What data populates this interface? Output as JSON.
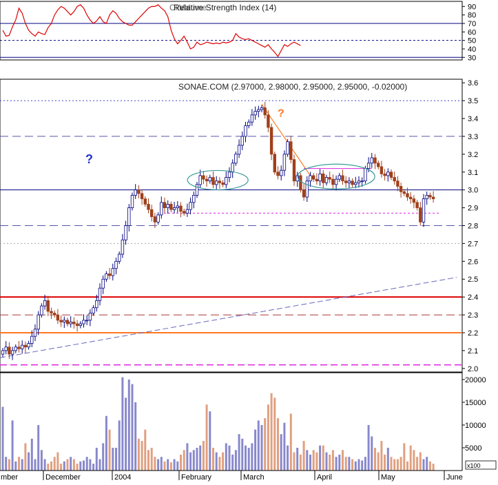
{
  "colors": {
    "background": "#ffffff",
    "frame": "#000000",
    "rsi_line": "#dd0000",
    "up_candle": "#ffffff",
    "up_candle_edge": "#000080",
    "down_candle": "#a0401a",
    "wick": "#000080",
    "volume_up": "#8888cc",
    "volume_down": "#e0a080",
    "annotation_blue": "#2233cc",
    "annotation_orange": "#ff7722",
    "ellipse": "#3a9a9a",
    "trendline_down": "#ff6600",
    "trendline_up": "#6666bb",
    "support_magenta": "#dd22dd",
    "level_red": "#dd0000",
    "level_orange": "#ff7722",
    "dash_blue": "#3333aa",
    "dash_red": "#aa3333"
  },
  "chart_data": [
    {
      "id": "rsi-panel",
      "type": "line",
      "title": "Relative Strength Index (14)",
      "overlap_text": [
        "Close",
        "Volume"
      ],
      "ylim": [
        27,
        96
      ],
      "y_ticks": [
        30,
        40,
        50,
        60,
        70,
        80,
        90
      ],
      "reference_lines": [
        {
          "value": 70,
          "style": "solid"
        },
        {
          "value": 50,
          "style": "dotted"
        },
        {
          "value": 30,
          "style": "solid"
        }
      ],
      "series": [
        {
          "values": [
            62,
            55,
            56,
            66,
            74,
            88,
            82,
            70,
            62,
            58,
            55,
            60,
            58,
            57,
            65,
            70,
            80,
            86,
            90,
            88,
            84,
            80,
            84,
            90,
            92,
            88,
            80,
            74,
            70,
            73,
            78,
            72,
            70,
            80,
            85,
            82,
            76,
            72,
            70,
            68,
            68,
            72,
            76,
            80,
            84,
            88,
            90,
            90,
            92,
            88,
            85,
            78,
            62,
            52,
            46,
            50,
            55,
            48,
            40,
            42,
            48,
            45,
            46,
            48,
            47,
            46,
            47,
            46,
            48,
            47,
            48,
            50,
            58,
            54,
            52,
            51,
            52,
            50,
            48,
            46,
            44,
            42,
            45,
            40,
            36,
            31,
            38,
            45,
            43,
            46,
            48,
            46,
            44
          ]
        }
      ]
    },
    {
      "id": "price-panel",
      "type": "candlestick",
      "title": "SONAE.COM (2.97000, 2.98000, 2.95000, 2.95000, -0.02000)",
      "ylim": [
        1.98,
        3.62
      ],
      "y_ticks": [
        2.0,
        2.1,
        2.2,
        2.3,
        2.4,
        2.5,
        2.6,
        2.7,
        2.8,
        2.9,
        3.0,
        3.1,
        3.2,
        3.3,
        3.4,
        3.5,
        3.6
      ],
      "x_labels": [
        "mber",
        "December",
        "2004",
        "February",
        "March",
        "April",
        "May",
        "June"
      ],
      "closes": [
        2.1,
        2.12,
        2.08,
        2.1,
        2.12,
        2.11,
        2.13,
        2.12,
        2.14,
        2.18,
        2.22,
        2.3,
        2.35,
        2.38,
        2.32,
        2.31,
        2.3,
        2.27,
        2.26,
        2.27,
        2.25,
        2.26,
        2.25,
        2.24,
        2.25,
        2.27,
        2.27,
        2.31,
        2.34,
        2.38,
        2.45,
        2.5,
        2.53,
        2.52,
        2.56,
        2.6,
        2.64,
        2.72,
        2.8,
        2.9,
        2.97,
        3.0,
        2.98,
        2.95,
        2.92,
        2.89,
        2.85,
        2.82,
        2.86,
        2.93,
        2.9,
        2.92,
        2.89,
        2.9,
        2.91,
        2.88,
        2.87,
        2.89,
        2.93,
        2.97,
        3.03,
        3.08,
        3.06,
        3.05,
        3.07,
        3.03,
        3.05,
        3.04,
        3.03,
        3.07,
        3.1,
        3.15,
        3.2,
        3.25,
        3.3,
        3.36,
        3.38,
        3.42,
        3.44,
        3.45,
        3.46,
        3.42,
        3.35,
        3.2,
        3.1,
        3.08,
        3.11,
        3.2,
        3.27,
        3.17,
        3.05,
        3.08,
        3.0,
        2.96,
        3.05,
        3.08,
        3.06,
        3.05,
        3.09,
        3.04,
        3.07,
        3.06,
        3.03,
        3.06,
        3.08,
        3.05,
        3.04,
        3.05,
        3.03,
        3.04,
        3.05,
        3.05,
        3.12,
        3.15,
        3.18,
        3.15,
        3.13,
        3.09,
        3.08,
        3.1,
        3.07,
        3.05,
        3.02,
        2.99,
        2.98,
        2.96,
        2.95,
        2.93,
        2.9,
        2.82,
        2.95,
        2.97,
        2.96,
        2.95
      ],
      "reference_lines": [
        {
          "value": 3.5,
          "style": "dotted-blue"
        },
        {
          "value": 3.3,
          "style": "dashed-blue"
        },
        {
          "value": 3.0,
          "style": "solid-blue"
        },
        {
          "value": 2.87,
          "style": "dotted-magenta"
        },
        {
          "value": 2.8,
          "style": "dashed-blue"
        },
        {
          "value": 2.7,
          "style": "dotted-gray"
        },
        {
          "value": 2.4,
          "style": "solid-red"
        },
        {
          "value": 2.3,
          "style": "dashed-red"
        },
        {
          "value": 2.2,
          "style": "solid-orange"
        },
        {
          "value": 2.02,
          "style": "dashed-magenta"
        }
      ],
      "annotations": [
        {
          "text": "?",
          "color": "blue"
        },
        {
          "text": "?",
          "color": "orange"
        }
      ]
    },
    {
      "id": "volume-panel",
      "type": "bar",
      "ylim": [
        0,
        21500
      ],
      "y_ticks": [
        5000,
        10000,
        15000,
        20000
      ],
      "unit_label": "x100",
      "values": [
        14000,
        3000,
        2500,
        11000,
        2000,
        3000,
        2500,
        6000,
        4000,
        7000,
        2500,
        10000,
        4500,
        2500,
        1500,
        2000,
        3000,
        4000,
        1500,
        2000,
        2500,
        3000,
        2500,
        1500,
        2000,
        2200,
        3000,
        2500,
        1500,
        5000,
        2500,
        6000,
        12000,
        9000,
        5000,
        5000,
        11000,
        20500,
        16000,
        20000,
        19000,
        15000,
        7000,
        6500,
        9000,
        4500,
        5000,
        3000,
        2500,
        3000,
        2000,
        2500,
        1800,
        2500,
        2000,
        3500,
        4500,
        6000,
        4000,
        4500,
        5000,
        5500,
        6500,
        14500,
        13000,
        5000,
        4000,
        3000,
        4000,
        6000,
        5500,
        3500,
        4500,
        8000,
        7000,
        5500,
        5000,
        6000,
        9000,
        11000,
        10000,
        11500,
        14500,
        17000,
        16000,
        11500,
        8000,
        10500,
        5500,
        12500,
        4000,
        5000,
        3500,
        6500,
        4500,
        3500,
        4500,
        4000,
        5500,
        5500,
        4000,
        3500,
        4500,
        3000,
        3500,
        4500,
        3000,
        3000,
        2500,
        2000,
        2500,
        2200,
        3000,
        10000,
        7500,
        5000,
        4000,
        6500,
        3500,
        5000,
        3000,
        2500,
        2500,
        3000,
        6000,
        2000,
        5500,
        4500,
        3000,
        4000,
        2500,
        3000,
        2000,
        1500
      ]
    }
  ]
}
